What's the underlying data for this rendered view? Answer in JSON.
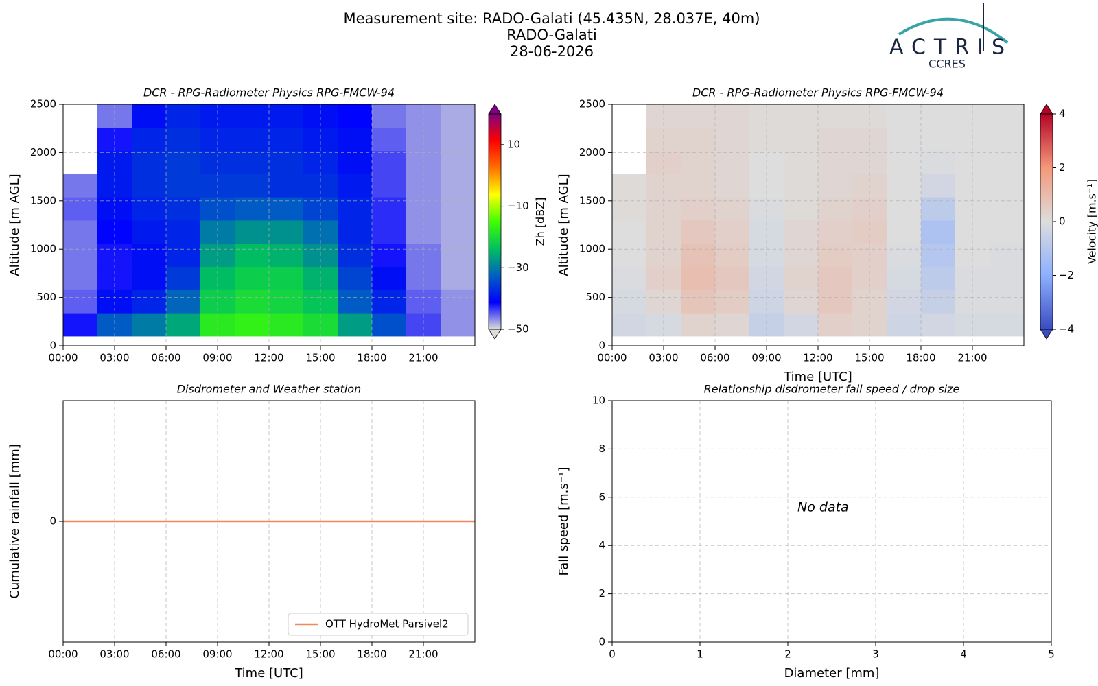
{
  "header": {
    "title": "Measurement site: RADO-Galati (45.435N, 28.037E, 40m)",
    "site": "RADO-Galati",
    "date": "28-06-2026"
  },
  "logo": {
    "name": "ACTRIS",
    "subtitle": "CCRES"
  },
  "chart_data": [
    {
      "type": "heatmap",
      "title": "DCR - RPG-Radiometer Physics RPG-FMCW-94",
      "ylabel": "Altitude [m AGL]",
      "xlim": [
        0,
        24
      ],
      "xticks": [
        {
          "value": 0,
          "label": "00:00"
        },
        {
          "value": 3,
          "label": "03:00"
        },
        {
          "value": 6,
          "label": "06:00"
        },
        {
          "value": 9,
          "label": "09:00"
        },
        {
          "value": 12,
          "label": "12:00"
        },
        {
          "value": 15,
          "label": "15:00"
        },
        {
          "value": 18,
          "label": "18:00"
        },
        {
          "value": 21,
          "label": "21:00"
        }
      ],
      "ylim": [
        0,
        2500
      ],
      "yticks": [
        0,
        500,
        1000,
        1500,
        2000,
        2500
      ],
      "grid": true,
      "x": [
        0,
        2,
        4,
        6,
        8,
        10,
        12,
        14,
        16,
        18,
        20,
        22,
        24
      ],
      "y": [
        100,
        340,
        580,
        820,
        1060,
        1300,
        1540,
        1780,
        2020,
        2260,
        2500
      ],
      "z": [
        [
          -42,
          -33,
          -30,
          -26,
          -18,
          -17,
          -18,
          -20,
          -27,
          -34,
          -44,
          -47
        ],
        [
          -45,
          -40,
          -38,
          -32,
          -22,
          -20,
          -21,
          -23,
          -33,
          -38,
          -45,
          -47
        ],
        [
          -46,
          -42,
          -40,
          -36,
          -24,
          -22,
          -22,
          -25,
          -35,
          -40,
          -46,
          -48
        ],
        [
          -46,
          -42,
          -40,
          -38,
          -27,
          -24,
          -25,
          -28,
          -37,
          -42,
          -46,
          -48
        ],
        [
          -46,
          -41,
          -39,
          -38,
          -30,
          -28,
          -28,
          -31,
          -38,
          -43,
          -47,
          -48
        ],
        [
          -45,
          -40,
          -38,
          -37,
          -34,
          -33,
          -33,
          -35,
          -38,
          -43,
          -47,
          -48
        ],
        [
          -46,
          -39,
          -37,
          -36,
          -36,
          -36,
          -37,
          -37,
          -39,
          -44,
          -47,
          -48
        ],
        [
          null,
          -39,
          -37,
          -36,
          -37,
          -37,
          -37,
          -38,
          -40,
          -44,
          -47,
          -48
        ],
        [
          null,
          -42,
          -38,
          -37,
          -38,
          -38,
          -38,
          -39,
          -40,
          -45,
          -47,
          -48
        ],
        [
          null,
          -46,
          -40,
          -38,
          -39,
          -39,
          -39,
          -40,
          -41,
          -46,
          -47,
          -48
        ]
      ],
      "colorbar": {
        "label": "Zh [dBZ]",
        "zlim": [
          -50,
          20
        ],
        "extend": "both",
        "ticks": [
          {
            "value": -50,
            "label": "−50"
          },
          {
            "value": -30,
            "label": "−30"
          },
          {
            "value": -10,
            "label": "−10"
          },
          10
        ],
        "colormap": [
          "#dcdcdc",
          "#0000ff",
          "#0060c0",
          "#00c060",
          "#40ff00",
          "#ffff00",
          "#ff7000",
          "#ff0000",
          "#800080"
        ]
      }
    },
    {
      "type": "heatmap",
      "title": "DCR - RPG-Radiometer Physics RPG-FMCW-94",
      "xlabel": "Time [UTC]",
      "ylabel": "Altitude [m AGL]",
      "xlim": [
        0,
        24
      ],
      "xticks": [
        {
          "value": 0,
          "label": "00:00"
        },
        {
          "value": 3,
          "label": "03:00"
        },
        {
          "value": 6,
          "label": "06:00"
        },
        {
          "value": 9,
          "label": "09:00"
        },
        {
          "value": 12,
          "label": "12:00"
        },
        {
          "value": 15,
          "label": "15:00"
        },
        {
          "value": 18,
          "label": "18:00"
        },
        {
          "value": 21,
          "label": "21:00"
        }
      ],
      "ylim": [
        0,
        2500
      ],
      "yticks": [
        0,
        500,
        1000,
        1500,
        2000,
        2500
      ],
      "grid": true,
      "x": [
        0,
        2,
        4,
        6,
        8,
        10,
        12,
        14,
        16,
        18,
        20,
        22,
        24
      ],
      "y": [
        100,
        340,
        580,
        820,
        1060,
        1300,
        1540,
        1780,
        2020,
        2260,
        2500
      ],
      "z": [
        [
          -0.3,
          -0.2,
          0.3,
          0.2,
          -0.6,
          -0.3,
          0.4,
          0.3,
          -0.4,
          -0.3,
          -0.2,
          -0.2
        ],
        [
          -0.2,
          0.2,
          0.7,
          0.5,
          -0.4,
          0.2,
          0.6,
          0.3,
          -0.3,
          -0.6,
          -0.1,
          -0.1
        ],
        [
          -0.1,
          0.4,
          0.9,
          0.6,
          -0.3,
          0.3,
          0.6,
          0.4,
          -0.2,
          -0.8,
          -0.1,
          -0.1
        ],
        [
          0,
          0.3,
          0.8,
          0.5,
          -0.2,
          0.2,
          0.5,
          0.4,
          -0.1,
          -1.0,
          0,
          -0.1
        ],
        [
          0,
          0.3,
          0.6,
          0.4,
          -0.2,
          0.2,
          0.4,
          0.5,
          0,
          -1.2,
          0,
          0
        ],
        [
          0.1,
          0.3,
          0.4,
          0.3,
          -0.1,
          0.1,
          0.3,
          0.4,
          0,
          -0.8,
          0,
          0
        ],
        [
          0.1,
          0.3,
          0.3,
          0.2,
          0,
          0.1,
          0.2,
          0.3,
          0,
          -0.3,
          0,
          0
        ],
        [
          null,
          0.4,
          0.3,
          0.2,
          0,
          0.1,
          0.2,
          0.2,
          0,
          -0.1,
          0,
          0
        ],
        [
          null,
          0.3,
          0.3,
          0.2,
          0.1,
          0.1,
          0.2,
          0.2,
          0,
          0,
          0,
          0
        ],
        [
          null,
          0.2,
          0.2,
          0.2,
          0.1,
          0.1,
          0.1,
          0.1,
          0,
          0,
          0,
          0
        ]
      ],
      "colorbar": {
        "label": "Velocity [m.s⁻¹]",
        "zlim": [
          -4,
          4
        ],
        "extend": "both",
        "ticks": [
          {
            "value": -4,
            "label": "−4"
          },
          {
            "value": -2,
            "label": "−2"
          },
          0,
          2,
          4
        ],
        "colormap": [
          "#3b4cc0",
          "#8db0fe",
          "#dddddd",
          "#f4987a",
          "#b40426"
        ]
      }
    },
    {
      "type": "line",
      "title": "Disdrometer and Weather station",
      "xlabel": "Time [UTC]",
      "ylabel": "Cumulative rainfall [mm]",
      "xlim": [
        0,
        24
      ],
      "xticks": [
        {
          "value": 0,
          "label": "00:00"
        },
        {
          "value": 3,
          "label": "03:00"
        },
        {
          "value": 6,
          "label": "06:00"
        },
        {
          "value": 9,
          "label": "09:00"
        },
        {
          "value": 12,
          "label": "12:00"
        },
        {
          "value": 15,
          "label": "15:00"
        },
        {
          "value": 18,
          "label": "18:00"
        },
        {
          "value": 21,
          "label": "21:00"
        }
      ],
      "ylim": [
        -1,
        1
      ],
      "yticks": [
        0
      ],
      "grid": true,
      "legend": "lower right",
      "x": [
        0,
        24
      ],
      "series": [
        {
          "name": "OTT HydroMet Parsivel2",
          "color": "#f08a5d",
          "values": [
            0,
            0
          ]
        }
      ]
    },
    {
      "type": "scatter",
      "title": "Relationship disdrometer fall speed / drop size",
      "xlabel": "Diameter [mm]",
      "ylabel": "Fall speed [m.s⁻¹]",
      "xlim": [
        0,
        5
      ],
      "xticks": [
        0,
        1,
        2,
        3,
        4,
        5
      ],
      "ylim": [
        0,
        10
      ],
      "yticks": [
        0,
        2,
        4,
        6,
        8,
        10
      ],
      "grid": true,
      "annotation": "No data"
    }
  ]
}
